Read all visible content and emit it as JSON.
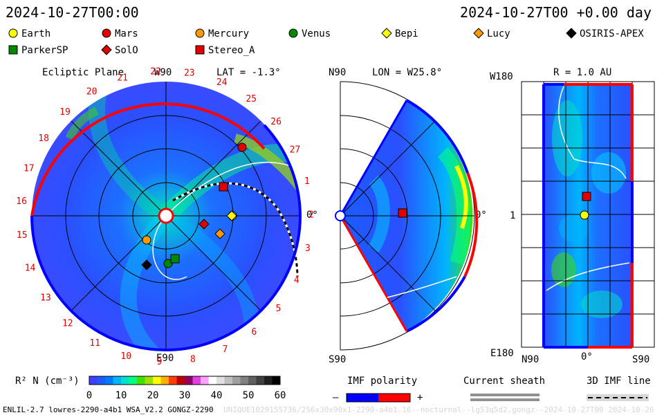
{
  "header": {
    "left_time": "2024-10-27T00:00",
    "right_time": "2024-10-27T00 +0.00 day"
  },
  "legend": [
    {
      "label": "Earth",
      "shape": "circle",
      "color": "#ffff00"
    },
    {
      "label": "Mars",
      "shape": "circle",
      "color": "#e00000"
    },
    {
      "label": "Mercury",
      "shape": "circle",
      "color": "#ff9900"
    },
    {
      "label": "Venus",
      "shape": "circle",
      "color": "#008800"
    },
    {
      "label": "Bepi",
      "shape": "diamond",
      "color": "#ffff00"
    },
    {
      "label": "Lucy",
      "shape": "diamond",
      "color": "#ff9900"
    },
    {
      "label": "OSIRIS-APEX",
      "shape": "diamond",
      "color": "#000000"
    },
    {
      "label": "ParkerSP",
      "shape": "square",
      "color": "#008800"
    },
    {
      "label": "SolO",
      "shape": "diamond",
      "color": "#e00000"
    },
    {
      "label": "Stereo_A",
      "shape": "square",
      "color": "#e00000"
    }
  ],
  "ecliptic": {
    "title": "Ecliptic Plane",
    "top_label": "W90",
    "lat_label": "LAT = -1.3°",
    "right_label": "0°",
    "bottom_label": "E90",
    "day_ticks": [
      "1",
      "2",
      "3",
      "4",
      "5",
      "6",
      "7",
      "8",
      "9",
      "10",
      "11",
      "12",
      "13",
      "14",
      "15",
      "16",
      "17",
      "18",
      "19",
      "20",
      "21",
      "22",
      "23",
      "24",
      "25",
      "26",
      "27"
    ]
  },
  "meridional": {
    "top_label": "N90",
    "lon_label": "LON = W25.8°",
    "right_label": "0°",
    "bottom_label": "S90"
  },
  "radial": {
    "top_left_label": "W180",
    "r_label": "R = 1.0 AU",
    "mid_label": "1",
    "bottom_left_label": "E180",
    "bottom_labels": [
      "N90",
      "0°",
      "S90"
    ]
  },
  "colorbar": {
    "label": "R² N (cm⁻³)",
    "ticks": [
      "0",
      "10",
      "20",
      "30",
      "40",
      "50",
      "60"
    ],
    "colors": [
      "#4040ff",
      "#1c5cff",
      "#0078ff",
      "#00b4ff",
      "#00e0c8",
      "#00ff80",
      "#40e000",
      "#a0e000",
      "#ffff00",
      "#ffb000",
      "#ff4000",
      "#c00000",
      "#900060",
      "#e040e0",
      "#ffa0ff",
      "#ffffff",
      "#e0e0e0",
      "#c0c0c0",
      "#a0a0a0",
      "#808080",
      "#606060",
      "#404040",
      "#202020",
      "#000000"
    ]
  },
  "imf_polarity": {
    "label": "IMF polarity",
    "minus": "–",
    "plus": "+",
    "neg_color": "#0000ff",
    "pos_color": "#ff0000"
  },
  "current_sheath": {
    "label": "Current sheath"
  },
  "imf_line": {
    "label": "3D IMF line"
  },
  "footer": {
    "model_info": "ENLIL-2.7 lowres-2290-a4b1 WSA_V2.2 GONGZ-2290",
    "watermark": "UNIQUE1029155736/256x30x90x1-2290-a4b1.16--nocturnal--lg53q5d2.gongz--2024-10-27T00   2024-10-26"
  },
  "chart_data": [
    {
      "type": "polar-contour",
      "title": "Ecliptic Plane",
      "lat": "-1.3°",
      "bodies": [
        "Earth",
        "Mars",
        "Mercury",
        "Venus",
        "Bepi",
        "Lucy",
        "OSIRIS-APEX",
        "ParkerSP",
        "SolO",
        "Stereo_A"
      ]
    },
    {
      "type": "meridional-contour",
      "lon": "W25.8°",
      "bodies": [
        "Stereo_A"
      ]
    },
    {
      "type": "radial-map",
      "r": "1.0 AU",
      "bodies": [
        "Stereo_A",
        "Earth"
      ]
    }
  ]
}
